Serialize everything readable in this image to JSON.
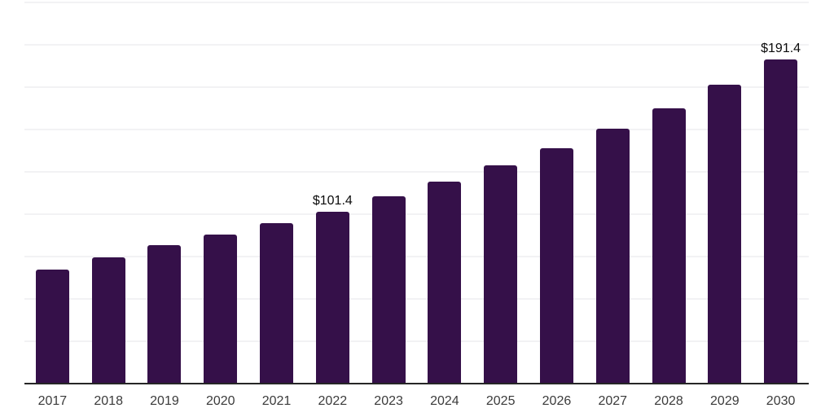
{
  "chart_data": {
    "type": "bar",
    "title": "",
    "xlabel": "",
    "ylabel": "",
    "categories": [
      "2017",
      "2018",
      "2019",
      "2020",
      "2021",
      "2022",
      "2023",
      "2024",
      "2025",
      "2026",
      "2027",
      "2028",
      "2029",
      "2030"
    ],
    "values": [
      67.3,
      74.6,
      81.8,
      88.0,
      94.7,
      101.4,
      110.5,
      119.4,
      128.8,
      139.2,
      150.6,
      162.4,
      176.4,
      191.4
    ],
    "annotations": [
      {
        "category": "2022",
        "text": "$101.4"
      },
      {
        "category": "2030",
        "text": "$191.4"
      }
    ],
    "ylim": [
      0,
      226.5
    ],
    "gridline_interval": 25,
    "grid": "horizontal-only, no y-axis tick labels",
    "legend": "none",
    "colors": {
      "bar": "#351049",
      "axis_line": "#262626",
      "gridline": "#f2f2f4",
      "tick_label": "#3b3b3b",
      "annotation": "#0b0b0b",
      "background": "#ffffff"
    }
  }
}
